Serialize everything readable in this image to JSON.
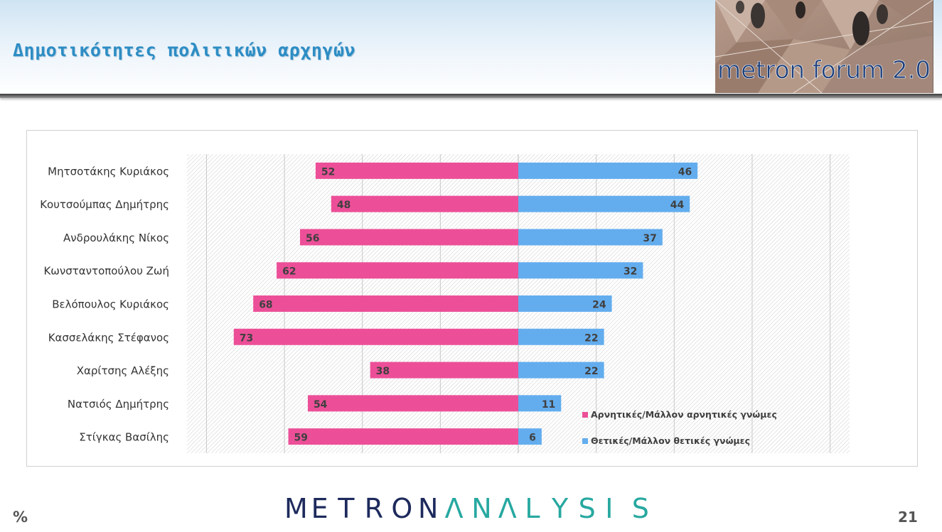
{
  "slide": {
    "title": "Δημοτικότητες πολιτικών αρχηγών",
    "unit": "%",
    "page_number": "21"
  },
  "logos": {
    "forum_text": "metron forum 2.0",
    "brand_text": "METRONANALYSIS",
    "brand_dark": "METRON",
    "brand_accent": "ANALYSIS"
  },
  "colors": {
    "negative": "#ec4f98",
    "positive": "#63adee",
    "title": "#2d8dc4",
    "brand_dark": "#1d2a5c",
    "brand_accent": "#27a8a0"
  },
  "chart_data": {
    "type": "bar",
    "orientation": "horizontal-diverging",
    "categories": [
      "Μητσοτάκης Κυριάκος",
      "Κουτσούμπας Δημήτρης",
      "Ανδρουλάκης Νίκος",
      "Κωνσταντοπούλου Ζωή",
      "Βελόπουλος Κυριάκος",
      "Κασσελάκης Στέφανος",
      "Χαρίτσης Αλέξης",
      "Νατσιός Δημήτρης",
      "Στίγκας Βασίλης"
    ],
    "series": [
      {
        "name": "Αρνητικές/Μάλλον αρνητικές γνώμες",
        "color": "#ec4f98",
        "values": [
          52,
          48,
          56,
          62,
          68,
          73,
          38,
          54,
          59
        ]
      },
      {
        "name": "Θετικές/Μάλλον θετικές γνώμες",
        "color": "#63adee",
        "values": [
          46,
          44,
          37,
          32,
          24,
          22,
          22,
          11,
          6
        ]
      }
    ],
    "xlim": [
      -85,
      85
    ],
    "grid": true,
    "legend": "bottom-right"
  }
}
